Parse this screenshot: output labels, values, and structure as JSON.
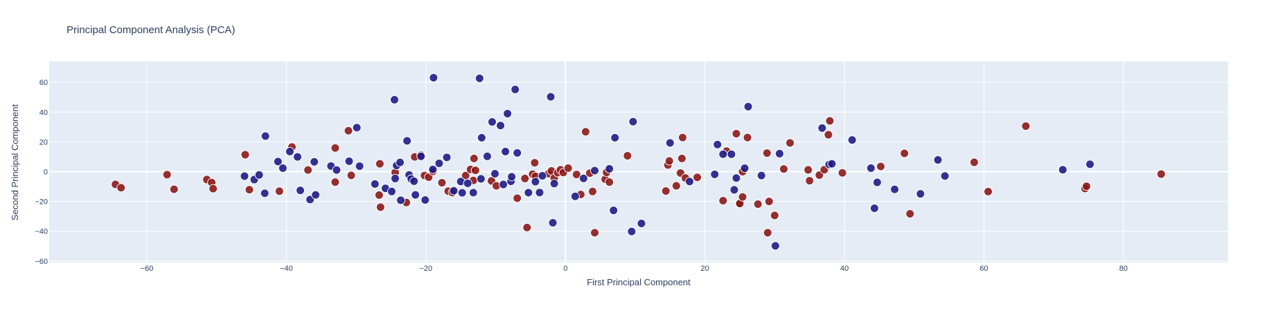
{
  "chart_data": {
    "type": "scatter",
    "title": "Principal Component Analysis (PCA)",
    "xlabel": "First Principal Component",
    "ylabel": "Second Principal Component",
    "xlim": [
      -74,
      95
    ],
    "ylim": [
      -61,
      74
    ],
    "x_ticks": [
      -60,
      -40,
      -20,
      0,
      20,
      40,
      60,
      80
    ],
    "y_ticks": [
      -60,
      -40,
      -20,
      0,
      20,
      40,
      60
    ],
    "x_tick_labels": [
      "−60",
      "−40",
      "−20",
      "0",
      "20",
      "40",
      "60",
      "80"
    ],
    "y_tick_labels": [
      "−60",
      "−40",
      "−20",
      "0",
      "20",
      "40",
      "60"
    ],
    "grid": true,
    "legend": "none",
    "colors": {
      "plot_background": "#e5ecf6",
      "grid": "#ffffff",
      "text": "#2a3f5f",
      "group_a": "#1f1c86",
      "group_b": "#8b1a1a"
    },
    "series": [
      {
        "color": "#8b1a1a",
        "points": [
          [
            -64.5,
            -8.5
          ],
          [
            -63.7,
            -10.8
          ],
          [
            -57.1,
            -2.0
          ],
          [
            -56.1,
            -11.8
          ],
          [
            -51.4,
            -5.3
          ],
          [
            -50.7,
            -7.3
          ],
          [
            -50.5,
            -11.4
          ],
          [
            -45.9,
            11.4
          ],
          [
            -45.3,
            -12.1
          ],
          [
            -41.0,
            -13.1
          ],
          [
            -39.2,
            16.6
          ],
          [
            -36.9,
            1.1
          ],
          [
            -33.0,
            15.9
          ],
          [
            -33.0,
            -7.0
          ],
          [
            -31.1,
            27.5
          ],
          [
            -30.7,
            -2.5
          ],
          [
            -26.7,
            -15.7
          ],
          [
            -26.6,
            5.3
          ],
          [
            -26.5,
            -23.8
          ],
          [
            -24.4,
            -0.5
          ],
          [
            -22.8,
            -20.7
          ],
          [
            -21.6,
            9.9
          ],
          [
            -20.7,
            11.1
          ],
          [
            -20.2,
            -2.6
          ],
          [
            -19.6,
            -3.7
          ],
          [
            -19.0,
            0.2
          ],
          [
            -17.7,
            -7.4
          ],
          [
            -16.8,
            -13.1
          ],
          [
            -16.2,
            -14.0
          ],
          [
            -14.3,
            -2.6
          ],
          [
            -13.6,
            1.5
          ],
          [
            -13.2,
            -5.9
          ],
          [
            -13.1,
            8.9
          ],
          [
            -12.9,
            0.9
          ],
          [
            -10.6,
            -6.2
          ],
          [
            -9.9,
            -9.5
          ],
          [
            -6.9,
            -17.8
          ],
          [
            -5.8,
            -4.6
          ],
          [
            -5.5,
            -37.5
          ],
          [
            -4.7,
            -1.7
          ],
          [
            -4.4,
            6.0
          ],
          [
            -4.3,
            -3.1
          ],
          [
            -2.4,
            -1.3
          ],
          [
            -2.0,
            0.5
          ],
          [
            -1.6,
            -4.2
          ],
          [
            -1.1,
            -0.7
          ],
          [
            -0.7,
            1.3
          ],
          [
            -0.3,
            -0.6
          ],
          [
            0.4,
            2.4
          ],
          [
            1.6,
            -1.9
          ],
          [
            2.2,
            -15.3
          ],
          [
            2.9,
            26.8
          ],
          [
            3.5,
            -1.0
          ],
          [
            3.9,
            -13.3
          ],
          [
            4.2,
            -41.0
          ],
          [
            5.7,
            -5.1
          ],
          [
            5.9,
            -0.5
          ],
          [
            6.3,
            -7.0
          ],
          [
            8.9,
            10.7
          ],
          [
            14.4,
            -13.0
          ],
          [
            14.7,
            4.5
          ],
          [
            14.9,
            7.2
          ],
          [
            15.9,
            -9.5
          ],
          [
            16.5,
            -0.9
          ],
          [
            16.7,
            8.9
          ],
          [
            16.8,
            22.9
          ],
          [
            17.2,
            -4.2
          ],
          [
            18.9,
            -3.8
          ],
          [
            22.6,
            -19.5
          ],
          [
            23.1,
            13.8
          ],
          [
            24.5,
            25.5
          ],
          [
            24.9,
            -21.4
          ],
          [
            25.0,
            -21.4
          ],
          [
            25.4,
            -17.0
          ],
          [
            25.4,
            0.0
          ],
          [
            26.1,
            22.9
          ],
          [
            27.6,
            -21.8
          ],
          [
            28.9,
            12.5
          ],
          [
            29.0,
            -41.0
          ],
          [
            29.2,
            -20.0
          ],
          [
            30.0,
            -29.4
          ],
          [
            31.3,
            1.8
          ],
          [
            32.2,
            19.3
          ],
          [
            34.8,
            1.2
          ],
          [
            35.0,
            -6.1
          ],
          [
            36.4,
            -2.3
          ],
          [
            37.1,
            1.3
          ],
          [
            37.7,
            24.8
          ],
          [
            37.9,
            34.1
          ],
          [
            39.7,
            -0.8
          ],
          [
            45.2,
            3.5
          ],
          [
            48.6,
            12.3
          ],
          [
            49.4,
            -28.3
          ],
          [
            58.6,
            6.3
          ],
          [
            60.6,
            -13.4
          ],
          [
            66.0,
            30.6
          ],
          [
            74.5,
            -11.3
          ],
          [
            74.7,
            -9.8
          ],
          [
            85.4,
            -1.6
          ]
        ]
      },
      {
        "color": "#1f1c86",
        "points": [
          [
            -46.0,
            -3.0
          ],
          [
            -44.6,
            -5.3
          ],
          [
            -43.9,
            -2.2
          ],
          [
            -43.1,
            -14.5
          ],
          [
            -43.0,
            23.9
          ],
          [
            -41.2,
            6.8
          ],
          [
            -40.5,
            2.4
          ],
          [
            -39.5,
            13.5
          ],
          [
            -38.4,
            9.9
          ],
          [
            -38.0,
            -12.6
          ],
          [
            -36.6,
            -18.7
          ],
          [
            -36.0,
            6.6
          ],
          [
            -35.8,
            -15.6
          ],
          [
            -33.6,
            3.8
          ],
          [
            -32.8,
            1.1
          ],
          [
            -31.0,
            7.0
          ],
          [
            -29.9,
            29.6
          ],
          [
            -29.5,
            3.7
          ],
          [
            -27.3,
            -8.3
          ],
          [
            -25.8,
            -11.2
          ],
          [
            -24.9,
            -13.3
          ],
          [
            -24.5,
            48.3
          ],
          [
            -24.4,
            -4.6
          ],
          [
            -24.2,
            4.1
          ],
          [
            -23.7,
            6.2
          ],
          [
            -23.6,
            -19.2
          ],
          [
            -22.7,
            20.7
          ],
          [
            -22.4,
            -2.2
          ],
          [
            -22.1,
            -4.9
          ],
          [
            -21.7,
            -6.4
          ],
          [
            -21.5,
            -15.6
          ],
          [
            -20.7,
            10.3
          ],
          [
            -20.1,
            -19.0
          ],
          [
            -19.0,
            1.5
          ],
          [
            -18.9,
            63.1
          ],
          [
            -18.1,
            5.6
          ],
          [
            -17.0,
            9.6
          ],
          [
            -16.0,
            -12.8
          ],
          [
            -15.0,
            -6.6
          ],
          [
            -14.8,
            -14.2
          ],
          [
            -14.0,
            -7.8
          ],
          [
            -13.2,
            -14.1
          ],
          [
            -12.3,
            62.7
          ],
          [
            -12.1,
            -4.8
          ],
          [
            -12.0,
            22.8
          ],
          [
            -11.2,
            10.3
          ],
          [
            -10.5,
            33.4
          ],
          [
            -10.1,
            -1.4
          ],
          [
            -9.3,
            31.0
          ],
          [
            -8.9,
            -8.6
          ],
          [
            -8.6,
            13.5
          ],
          [
            -8.3,
            39.0
          ],
          [
            -7.8,
            -6.5
          ],
          [
            -7.7,
            -3.4
          ],
          [
            -7.2,
            55.2
          ],
          [
            -6.9,
            12.6
          ],
          [
            -5.3,
            -14.1
          ],
          [
            -4.3,
            -6.7
          ],
          [
            -3.7,
            -14.0
          ],
          [
            -3.3,
            -2.8
          ],
          [
            -2.1,
            50.3
          ],
          [
            -1.8,
            -34.3
          ],
          [
            -1.6,
            -8.0
          ],
          [
            1.4,
            -16.6
          ],
          [
            2.6,
            -4.5
          ],
          [
            4.2,
            0.7
          ],
          [
            6.3,
            1.9
          ],
          [
            6.9,
            -26.0
          ],
          [
            7.1,
            22.8
          ],
          [
            9.5,
            -40.2
          ],
          [
            9.7,
            33.6
          ],
          [
            10.9,
            -34.8
          ],
          [
            15.0,
            19.3
          ],
          [
            17.8,
            -6.6
          ],
          [
            21.4,
            -1.8
          ],
          [
            21.8,
            18.2
          ],
          [
            22.6,
            11.7
          ],
          [
            23.8,
            11.7
          ],
          [
            24.2,
            -12.2
          ],
          [
            24.5,
            -4.3
          ],
          [
            25.7,
            2.3
          ],
          [
            26.2,
            43.7
          ],
          [
            28.1,
            -2.6
          ],
          [
            30.1,
            -49.8
          ],
          [
            30.7,
            12.1
          ],
          [
            36.8,
            29.3
          ],
          [
            37.8,
            4.8
          ],
          [
            38.2,
            5.3
          ],
          [
            41.1,
            21.3
          ],
          [
            43.8,
            2.4
          ],
          [
            44.3,
            -24.6
          ],
          [
            44.7,
            -7.2
          ],
          [
            47.2,
            -11.9
          ],
          [
            50.9,
            -14.9
          ],
          [
            53.4,
            7.9
          ],
          [
            54.4,
            -2.9
          ],
          [
            71.3,
            1.3
          ],
          [
            75.2,
            5.0
          ]
        ]
      }
    ]
  }
}
